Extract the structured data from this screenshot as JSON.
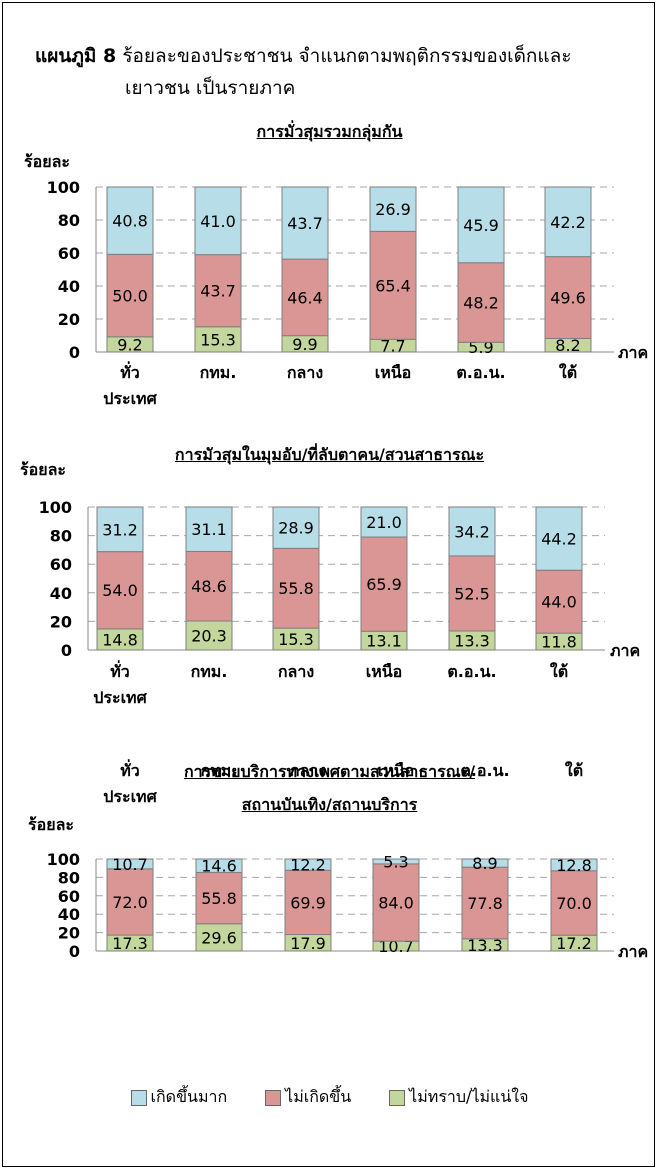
{
  "figure": {
    "label": "แผนภูมิ 8",
    "title_line1": "ร้อยละของประชาชน  จำแนกตามพฤติกรรมของเด็กและ",
    "title_line2": "เยาวชน  เป็นรายภาค"
  },
  "colors": {
    "เกิดขึ้นมาก": "#b7dde8",
    "ไม่เกิดขึ้น": "#d99694",
    "ไม่ทราบ/ไม่แน่ใจ": "#c3d69b"
  },
  "legend": [
    "เกิดขึ้นมาก",
    "ไม่เกิดขึ้น",
    "ไม่ทราบ/ไม่แน่ใจ"
  ],
  "chart_data": [
    {
      "type": "bar",
      "stacked": true,
      "title": "การมั่วสุมรวมกลุ่มกัน",
      "ylabel": "ร้อยละ",
      "xlabel": "ภาค",
      "ylim": [
        0,
        100
      ],
      "yticks": [
        "0",
        "20",
        "40",
        "60",
        "80",
        "100"
      ],
      "grid": true,
      "categories": [
        [
          "ทั่ว",
          "ประเทศ"
        ],
        [
          "กทม."
        ],
        [
          "กลาง"
        ],
        [
          "เหนือ"
        ],
        [
          "ต.อ.น."
        ],
        [
          "ใต้"
        ]
      ],
      "series": [
        {
          "name": "ไม่ทราบ/ไม่แน่ใจ",
          "values": [
            9.2,
            15.3,
            9.9,
            7.7,
            5.9,
            8.2
          ],
          "labels": [
            "9.2",
            "15.3",
            "9.9",
            "7.7",
            "5.9",
            "8.2"
          ]
        },
        {
          "name": "ไม่เกิดขึ้น",
          "values": [
            50.0,
            43.7,
            46.4,
            65.4,
            48.2,
            49.6
          ],
          "labels": [
            "50.0",
            "43.7",
            "46.4",
            "65.4",
            "48.2",
            "49.6"
          ]
        },
        {
          "name": "เกิดขึ้นมาก",
          "values": [
            40.8,
            41.0,
            43.7,
            26.9,
            45.9,
            42.2
          ],
          "labels": [
            "40.8",
            "41.0",
            "43.7",
            "26.9",
            "45.9",
            "42.2"
          ]
        }
      ]
    },
    {
      "type": "bar",
      "stacked": true,
      "title": "การมัวสุมในมุมอับ/ที่ลับตาคน/สวนสาธารณะ",
      "ylabel": "ร้อยละ",
      "xlabel": "ภาค",
      "ylim": [
        0,
        100
      ],
      "yticks": [
        "0",
        "20",
        "40",
        "60",
        "80",
        "100"
      ],
      "grid": true,
      "categories": [
        [
          "ทั่ว",
          "ประเทศ"
        ],
        [
          "กทม."
        ],
        [
          "กลาง"
        ],
        [
          "เหนือ"
        ],
        [
          "ต.อ.น."
        ],
        [
          "ใต้"
        ]
      ],
      "series": [
        {
          "name": "ไม่ทราบ/ไม่แน่ใจ",
          "values": [
            14.8,
            20.3,
            15.3,
            13.1,
            13.3,
            11.8
          ],
          "labels": [
            "14.8",
            "20.3",
            "15.3",
            "13.1",
            "13.3",
            "11.8"
          ]
        },
        {
          "name": "ไม่เกิดขึ้น",
          "values": [
            54.0,
            48.6,
            55.8,
            65.9,
            52.5,
            44.0
          ],
          "labels": [
            "54.0",
            "48.6",
            "55.8",
            "65.9",
            "52.5",
            "44.0"
          ]
        },
        {
          "name": "เกิดขึ้นมาก",
          "values": [
            31.2,
            31.1,
            28.9,
            21.0,
            34.2,
            44.2
          ],
          "labels": [
            "31.2",
            "31.1",
            "28.9",
            "21.0",
            "34.2",
            "44.2"
          ]
        }
      ]
    },
    {
      "type": "bar",
      "stacked": true,
      "title": "การขายบริการทางเพศตามสวนสาธารณะ/",
      "title_line2": "สถานบันเทิง/สถานบริการ",
      "ylabel": "ร้อยละ",
      "xlabel": "ภาค",
      "ylim": [
        0,
        100
      ],
      "yticks": [
        "0",
        "20",
        "40",
        "60",
        "80",
        "100"
      ],
      "grid": true,
      "categories": [
        [
          "ทั่ว",
          "ประเทศ"
        ],
        [
          "กทม."
        ],
        [
          "กลาง"
        ],
        [
          "เหนือ"
        ],
        [
          "ต.อ.น."
        ],
        [
          "ใต้"
        ]
      ],
      "series": [
        {
          "name": "ไม่ทราบ/ไม่แน่ใจ",
          "values": [
            17.3,
            29.6,
            17.9,
            10.7,
            13.3,
            17.2
          ],
          "labels": [
            "17.3",
            "29.6",
            "17.9",
            "10.7",
            "13.3",
            "17.2"
          ]
        },
        {
          "name": "ไม่เกิดขึ้น",
          "values": [
            72.0,
            55.8,
            69.9,
            84.0,
            77.8,
            70.0
          ],
          "labels": [
            "72.0",
            "55.8",
            "69.9",
            "84.0",
            "77.8",
            "70.0"
          ]
        },
        {
          "name": "เกิดขึ้นมาก",
          "values": [
            10.7,
            14.6,
            12.2,
            5.3,
            8.9,
            12.8
          ],
          "labels": [
            "10.7",
            "14.6",
            "12.2",
            "5.3",
            "8.9",
            "12.8"
          ]
        }
      ]
    }
  ]
}
